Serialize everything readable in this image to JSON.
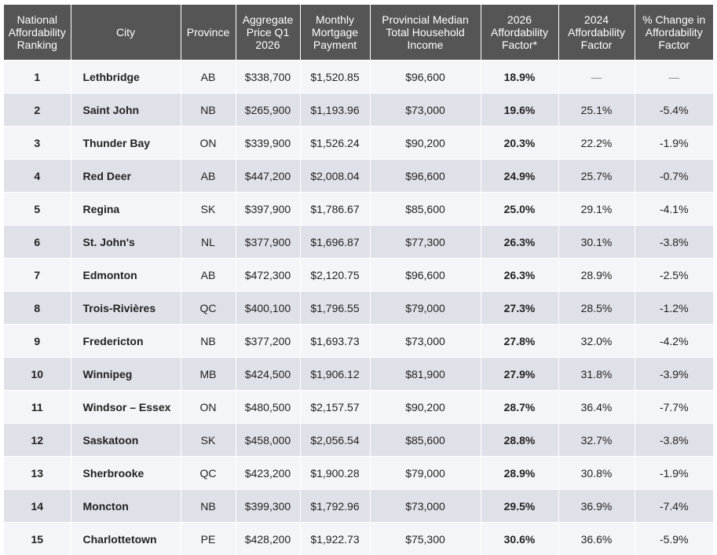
{
  "headers": {
    "rank": "National Affordability Ranking",
    "city": "City",
    "province": "Province",
    "price": "Aggregate Price Q1 2026",
    "mortgage": "Monthly Mortgage Payment",
    "income": "Provincial Median Total Household Income",
    "factor2026": "2026 Affordability Factor*",
    "factor2024": "2024 Affordability Factor",
    "change": "% Change in Affordability Factor"
  },
  "rows": [
    {
      "rank": "1",
      "city": "Lethbridge",
      "province": "AB",
      "price": "$338,700",
      "mortgage": "$1,520.85",
      "income": "$96,600",
      "factor2026": "18.9%",
      "factor2024": "—",
      "change": "—"
    },
    {
      "rank": "2",
      "city": "Saint John",
      "province": "NB",
      "price": "$265,900",
      "mortgage": "$1,193.96",
      "income": "$73,000",
      "factor2026": "19.6%",
      "factor2024": "25.1%",
      "change": "-5.4%"
    },
    {
      "rank": "3",
      "city": "Thunder Bay",
      "province": "ON",
      "price": "$339,900",
      "mortgage": "$1,526.24",
      "income": "$90,200",
      "factor2026": "20.3%",
      "factor2024": "22.2%",
      "change": "-1.9%"
    },
    {
      "rank": "4",
      "city": "Red Deer",
      "province": "AB",
      "price": "$447,200",
      "mortgage": "$2,008.04",
      "income": "$96,600",
      "factor2026": "24.9%",
      "factor2024": "25.7%",
      "change": "-0.7%"
    },
    {
      "rank": "5",
      "city": "Regina",
      "province": "SK",
      "price": "$397,900",
      "mortgage": "$1,786.67",
      "income": "$85,600",
      "factor2026": "25.0%",
      "factor2024": "29.1%",
      "change": "-4.1%"
    },
    {
      "rank": "6",
      "city": "St. John's",
      "province": "NL",
      "price": "$377,900",
      "mortgage": "$1,696.87",
      "income": "$77,300",
      "factor2026": "26.3%",
      "factor2024": "30.1%",
      "change": "-3.8%"
    },
    {
      "rank": "7",
      "city": "Edmonton",
      "province": "AB",
      "price": "$472,300",
      "mortgage": "$2,120.75",
      "income": "$96,600",
      "factor2026": "26.3%",
      "factor2024": "28.9%",
      "change": "-2.5%"
    },
    {
      "rank": "8",
      "city": "Trois-Rivières",
      "province": "QC",
      "price": "$400,100",
      "mortgage": "$1,796.55",
      "income": "$79,000",
      "factor2026": "27.3%",
      "factor2024": "28.5%",
      "change": "-1.2%"
    },
    {
      "rank": "9",
      "city": "Fredericton",
      "province": "NB",
      "price": "$377,200",
      "mortgage": "$1,693.73",
      "income": "$73,000",
      "factor2026": "27.8%",
      "factor2024": "32.0%",
      "change": "-4.2%"
    },
    {
      "rank": "10",
      "city": "Winnipeg",
      "province": "MB",
      "price": "$424,500",
      "mortgage": "$1,906.12",
      "income": "$81,900",
      "factor2026": "27.9%",
      "factor2024": "31.8%",
      "change": "-3.9%"
    },
    {
      "rank": "11",
      "city": "Windsor – Essex",
      "province": "ON",
      "price": "$480,500",
      "mortgage": "$2,157.57",
      "income": "$90,200",
      "factor2026": "28.7%",
      "factor2024": "36.4%",
      "change": "-7.7%"
    },
    {
      "rank": "12",
      "city": "Saskatoon",
      "province": "SK",
      "price": "$458,000",
      "mortgage": "$2,056.54",
      "income": "$85,600",
      "factor2026": "28.8%",
      "factor2024": "32.7%",
      "change": "-3.8%"
    },
    {
      "rank": "13",
      "city": "Sherbrooke",
      "province": "QC",
      "price": "$423,200",
      "mortgage": "$1,900.28",
      "income": "$79,000",
      "factor2026": "28.9%",
      "factor2024": "30.8%",
      "change": "-1.9%"
    },
    {
      "rank": "14",
      "city": "Moncton",
      "province": "NB",
      "price": "$399,300",
      "mortgage": "$1,792.96",
      "income": "$73,000",
      "factor2026": "29.5%",
      "factor2024": "36.9%",
      "change": "-7.4%"
    },
    {
      "rank": "15",
      "city": "Charlottetown",
      "province": "PE",
      "price": "$428,200",
      "mortgage": "$1,922.73",
      "income": "$75,300",
      "factor2026": "30.6%",
      "factor2024": "36.6%",
      "change": "-5.9%"
    }
  ]
}
